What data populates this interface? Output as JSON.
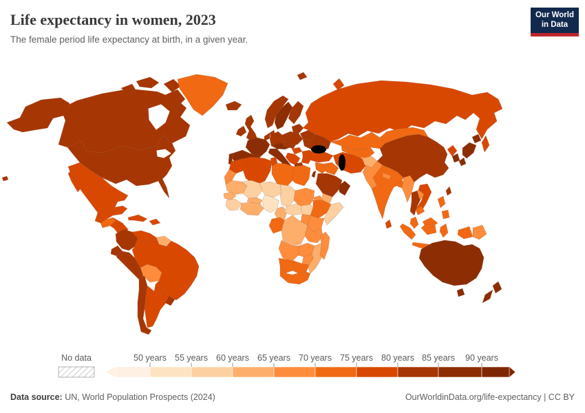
{
  "header": {
    "title": "Life expectancy in women, 2023",
    "subtitle": "The female period life expectancy at birth, in a given year."
  },
  "logo": {
    "line1": "Our World",
    "line2": "in Data",
    "bg_color": "#12294e",
    "accent_color": "#c0262d"
  },
  "legend": {
    "no_data_label": "No data",
    "tick_labels": [
      "50 years",
      "55 years",
      "60 years",
      "65 years",
      "70 years",
      "75 years",
      "80 years",
      "85 years",
      "90 years"
    ],
    "colors": [
      "#fef0e3",
      "#fde3c1",
      "#fdd0a2",
      "#fdae6b",
      "#fd8d3c",
      "#f16913",
      "#d94801",
      "#a63603",
      "#8c2d04",
      "#7f2704"
    ]
  },
  "footer": {
    "source_label": "Data source:",
    "source_value": " UN, World Population Prospects (2024)",
    "credit": "OurWorldinData.org/life-expectancy | CC BY"
  },
  "chart_data": {
    "type": "choropleth_map",
    "title": "Life expectancy in women, 2023",
    "unit": "years",
    "legend_position": "bottom",
    "bins": [
      {
        "range": "<50",
        "color": "#fef0e3"
      },
      {
        "range": "50-55",
        "color": "#fde3c1"
      },
      {
        "range": "55-60",
        "color": "#fdd0a2"
      },
      {
        "range": "60-65",
        "color": "#fdae6b"
      },
      {
        "range": "65-70",
        "color": "#fd8d3c"
      },
      {
        "range": "70-75",
        "color": "#f16913"
      },
      {
        "range": "75-80",
        "color": "#d94801"
      },
      {
        "range": "80-85",
        "color": "#a63603"
      },
      {
        "range": "85-90",
        "color": "#8c2d04"
      },
      {
        "range": "90+",
        "color": "#7f2704"
      }
    ],
    "no_data": {
      "label": "No data",
      "pattern": "hatched"
    },
    "countries": {
      "Canada": {
        "bin": "80-85",
        "color": "#a63603"
      },
      "United States": {
        "bin": "80-85",
        "color": "#a63603"
      },
      "Greenland": {
        "bin": "70-75",
        "color": "#f16913"
      },
      "Mexico": {
        "bin": "75-80",
        "color": "#d94801"
      },
      "Guatemala": {
        "bin": "70-75",
        "color": "#f16913"
      },
      "Honduras-Nicaragua": {
        "bin": "75-80",
        "color": "#d94801"
      },
      "Costa Rica-Panama": {
        "bin": "80-85",
        "color": "#a63603"
      },
      "Cuba": {
        "bin": "75-80",
        "color": "#d94801"
      },
      "Hispaniola": {
        "bin": "75-80",
        "color": "#d94801"
      },
      "Colombia": {
        "bin": "80-85",
        "color": "#a63603"
      },
      "Venezuela": {
        "bin": "75-80",
        "color": "#d94801"
      },
      "Guianas": {
        "bin": "60-65",
        "color": "#fdae6b"
      },
      "Ecuador": {
        "bin": "80-85",
        "color": "#a63603"
      },
      "Peru": {
        "bin": "80-85",
        "color": "#a63603"
      },
      "Brazil": {
        "bin": "75-80",
        "color": "#d94801"
      },
      "Bolivia": {
        "bin": "65-70",
        "color": "#fd8d3c"
      },
      "Paraguay": {
        "bin": "75-80",
        "color": "#d94801"
      },
      "Chile": {
        "bin": "80-85",
        "color": "#a63603"
      },
      "Argentina": {
        "bin": "75-80",
        "color": "#d94801"
      },
      "Uruguay": {
        "bin": "80-85",
        "color": "#a63603"
      },
      "Iceland": {
        "bin": "80-85",
        "color": "#a63603"
      },
      "Ireland": {
        "bin": "80-85",
        "color": "#a63603"
      },
      "United Kingdom": {
        "bin": "80-85",
        "color": "#a63603"
      },
      "Norway": {
        "bin": "80-85",
        "color": "#a63603"
      },
      "Sweden": {
        "bin": "85-90",
        "color": "#8c2d04"
      },
      "Finland": {
        "bin": "80-85",
        "color": "#a63603"
      },
      "Denmark": {
        "bin": "80-85",
        "color": "#a63603"
      },
      "Germany": {
        "bin": "80-85",
        "color": "#a63603"
      },
      "Benelux": {
        "bin": "80-85",
        "color": "#a63603"
      },
      "France": {
        "bin": "85-90",
        "color": "#8c2d04"
      },
      "Spain": {
        "bin": "85-90",
        "color": "#8c2d04"
      },
      "Portugal": {
        "bin": "85-90",
        "color": "#8c2d04"
      },
      "Italy": {
        "bin": "85-90",
        "color": "#8c2d04"
      },
      "Alpine States": {
        "bin": "85-90",
        "color": "#8c2d04"
      },
      "Czechia-Slovakia": {
        "bin": "80-85",
        "color": "#a63603"
      },
      "Poland": {
        "bin": "80-85",
        "color": "#a63603"
      },
      "Hungary": {
        "bin": "75-80",
        "color": "#d94801"
      },
      "Balkans": {
        "bin": "75-80",
        "color": "#d94801"
      },
      "Bulgaria": {
        "bin": "75-80",
        "color": "#d94801"
      },
      "Greece": {
        "bin": "80-85",
        "color": "#a63603"
      },
      "Romania": {
        "bin": "75-80",
        "color": "#d94801"
      },
      "Baltics": {
        "bin": "80-85",
        "color": "#a63603"
      },
      "Belarus": {
        "bin": "80-85",
        "color": "#a63603"
      },
      "Ukraine": {
        "bin": "80-85",
        "color": "#a63603"
      },
      "Russia": {
        "bin": "75-80",
        "color": "#d94801"
      },
      "Turkey": {
        "bin": "75-80",
        "color": "#d94801"
      },
      "Levant": {
        "bin": "70-75",
        "color": "#f16913"
      },
      "Israel": {
        "bin": "85-90",
        "color": "#8c2d04"
      },
      "Iraq": {
        "bin": "70-75",
        "color": "#f16913"
      },
      "Iran": {
        "bin": "75-80",
        "color": "#d94801"
      },
      "Saudi Arabia": {
        "bin": "80-85",
        "color": "#a63603"
      },
      "Yemen": {
        "bin": "60-65",
        "color": "#fdae6b"
      },
      "Oman-UAE": {
        "bin": "85-90",
        "color": "#8c2d04"
      },
      "Kazakhstan": {
        "bin": "70-75",
        "color": "#f16913"
      },
      "Central Asia": {
        "bin": "70-75",
        "color": "#f16913"
      },
      "Afghanistan": {
        "bin": "60-65",
        "color": "#fdae6b"
      },
      "Pakistan": {
        "bin": "65-70",
        "color": "#fd8d3c"
      },
      "India": {
        "bin": "70-75",
        "color": "#f16913"
      },
      "Nepal": {
        "bin": "65-70",
        "color": "#fd8d3c"
      },
      "Bangladesh": {
        "bin": "70-75",
        "color": "#f16913"
      },
      "Sri Lanka": {
        "bin": "75-80",
        "color": "#d94801"
      },
      "China": {
        "bin": "80-85",
        "color": "#a63603"
      },
      "Mongolia": {
        "bin": "70-75",
        "color": "#f16913"
      },
      "North Korea": {
        "bin": "75-80",
        "color": "#d94801"
      },
      "South Korea": {
        "bin": "85-90",
        "color": "#8c2d04"
      },
      "Japan": {
        "bin": "85-90",
        "color": "#8c2d04"
      },
      "Taiwan": {
        "bin": "80-85",
        "color": "#a63603"
      },
      "Myanmar": {
        "bin": "65-70",
        "color": "#fd8d3c"
      },
      "Thailand": {
        "bin": "80-85",
        "color": "#a63603"
      },
      "Laos": {
        "bin": "65-70",
        "color": "#fd8d3c"
      },
      "Cambodia": {
        "bin": "70-75",
        "color": "#f16913"
      },
      "Vietnam": {
        "bin": "75-80",
        "color": "#d94801"
      },
      "Malaysia": {
        "bin": "70-75",
        "color": "#f16913"
      },
      "Indonesia": {
        "bin": "70-75",
        "color": "#f16913"
      },
      "Papua New Guinea": {
        "bin": "65-70",
        "color": "#fd8d3c"
      },
      "Philippines": {
        "bin": "70-75",
        "color": "#f16913"
      },
      "Australia": {
        "bin": "85-90",
        "color": "#8c2d04"
      },
      "New Zealand": {
        "bin": "85-90",
        "color": "#8c2d04"
      },
      "Morocco": {
        "bin": "75-80",
        "color": "#d94801"
      },
      "Western Sahara": {
        "bin": "65-70",
        "color": "#fd8d3c"
      },
      "Algeria": {
        "bin": "75-80",
        "color": "#d94801"
      },
      "Tunisia": {
        "bin": "75-80",
        "color": "#d94801"
      },
      "Libya": {
        "bin": "70-75",
        "color": "#f16913"
      },
      "Egypt": {
        "bin": "70-75",
        "color": "#f16913"
      },
      "Mauritania": {
        "bin": "60-65",
        "color": "#fdae6b"
      },
      "Mali": {
        "bin": "55-60",
        "color": "#fdd0a2"
      },
      "Niger": {
        "bin": "55-60",
        "color": "#fdd0a2"
      },
      "Chad": {
        "bin": "55-60",
        "color": "#fdd0a2"
      },
      "Sudan": {
        "bin": "65-70",
        "color": "#fd8d3c"
      },
      "Eritrea": {
        "bin": "65-70",
        "color": "#fd8d3c"
      },
      "Senegal": {
        "bin": "60-65",
        "color": "#fdae6b"
      },
      "Guinea": {
        "bin": "55-60",
        "color": "#fdd0a2"
      },
      "Burkina Faso": {
        "bin": "60-65",
        "color": "#fdae6b"
      },
      "Ivory Coast-Ghana": {
        "bin": "60-65",
        "color": "#fdae6b"
      },
      "Nigeria": {
        "bin": "50-55",
        "color": "#fde3c1"
      },
      "Cameroon": {
        "bin": "60-65",
        "color": "#fdae6b"
      },
      "Central African Republic": {
        "bin": "55-60",
        "color": "#fdd0a2"
      },
      "South Sudan": {
        "bin": "55-60",
        "color": "#fdd0a2"
      },
      "Ethiopia": {
        "bin": "70-75",
        "color": "#f16913"
      },
      "Somalia": {
        "bin": "55-60",
        "color": "#fdd0a2"
      },
      "Kenya": {
        "bin": "65-70",
        "color": "#fd8d3c"
      },
      "Uganda": {
        "bin": "65-70",
        "color": "#fd8d3c"
      },
      "Congo-Gabon": {
        "bin": "70-75",
        "color": "#f16913"
      },
      "DR Congo": {
        "bin": "60-65",
        "color": "#fdae6b"
      },
      "Tanzania": {
        "bin": "65-70",
        "color": "#fd8d3c"
      },
      "Angola": {
        "bin": "65-70",
        "color": "#fd8d3c"
      },
      "Zambia": {
        "bin": "65-70",
        "color": "#fd8d3c"
      },
      "Mozambique": {
        "bin": "60-65",
        "color": "#fdae6b"
      },
      "Zimbabwe": {
        "bin": "65-70",
        "color": "#fd8d3c"
      },
      "Namibia": {
        "bin": "70-75",
        "color": "#f16913"
      },
      "Botswana": {
        "bin": "70-75",
        "color": "#f16913"
      },
      "South Africa": {
        "bin": "70-75",
        "color": "#f16913"
      },
      "Madagascar": {
        "bin": "65-70",
        "color": "#fd8d3c"
      }
    }
  }
}
